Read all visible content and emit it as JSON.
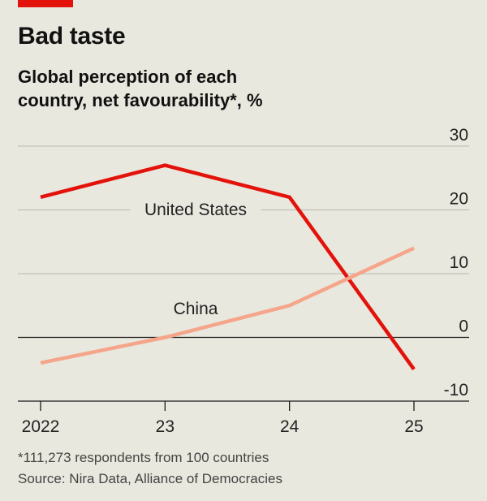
{
  "header": {
    "title": "Bad taste",
    "subtitle": "Global perception of each country, net favourability*, %"
  },
  "footer": {
    "footnote": "*111,273 respondents from 100 countries",
    "source": "Source: Nira Data, Alliance of Democracies"
  },
  "colors": {
    "accent": "#e3120b",
    "united_states": "#e3120b",
    "china": "#f4a58a",
    "background": "#e9e8de"
  },
  "chart_data": {
    "type": "line",
    "title": "Bad taste",
    "subtitle": "Global perception of each country, net favourability*, %",
    "x": [
      "2022",
      "23",
      "24",
      "25"
    ],
    "xlabel": "",
    "ylabel": "",
    "ylim": [
      -10,
      30
    ],
    "yticks": [
      30,
      20,
      10,
      0,
      -10
    ],
    "grid": true,
    "series": [
      {
        "name": "United States",
        "values": [
          22,
          27,
          22,
          -5
        ],
        "color": "#e3120b"
      },
      {
        "name": "China",
        "values": [
          -4,
          0,
          5,
          14
        ],
        "color": "#f4a58a"
      }
    ]
  }
}
